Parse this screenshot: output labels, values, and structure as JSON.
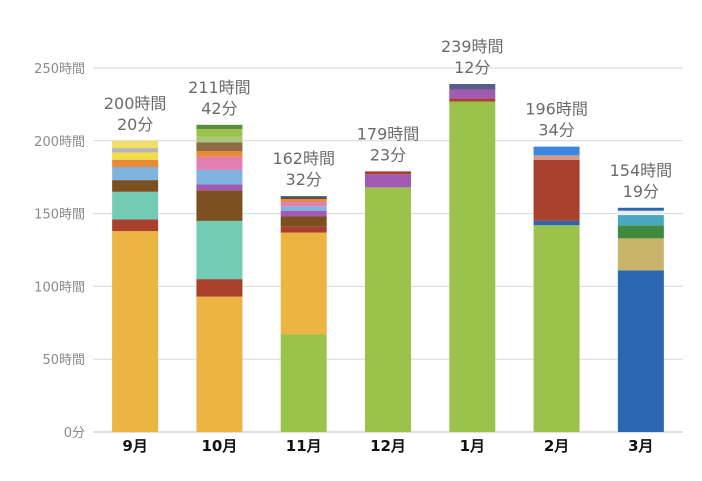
{
  "chart_data": {
    "type": "bar",
    "stacked": true,
    "title": "",
    "xlabel": "",
    "ylabel": "",
    "ylim": [
      0,
      250
    ],
    "yticks": [
      {
        "value": 0,
        "label": "0分"
      },
      {
        "value": 50,
        "label": "50時間"
      },
      {
        "value": 100,
        "label": "100時間"
      },
      {
        "value": 150,
        "label": "150時間"
      },
      {
        "value": 200,
        "label": "200時間"
      },
      {
        "value": 250,
        "label": "250時間"
      }
    ],
    "grid": true,
    "legend": "none",
    "categories": [
      "9月",
      "10月",
      "11月",
      "12月",
      "1月",
      "2月",
      "3月"
    ],
    "totals": [
      [
        "200時間",
        "20分"
      ],
      [
        "211時間",
        "42分"
      ],
      [
        "162時間",
        "32分"
      ],
      [
        "179時間",
        "23分"
      ],
      [
        "239時間",
        "12分"
      ],
      [
        "196時間",
        "34分"
      ],
      [
        "154時間",
        "19分"
      ]
    ],
    "stacks": [
      [
        {
          "value": 138,
          "color": "#ecb442"
        },
        {
          "value": 8,
          "color": "#a9402e"
        },
        {
          "value": 19,
          "color": "#72cbb4"
        },
        {
          "value": 8,
          "color": "#7b4f1f"
        },
        {
          "value": 9,
          "color": "#7fb3e0"
        },
        {
          "value": 5,
          "color": "#e88a3a"
        },
        {
          "value": 5,
          "color": "#f2dc4a"
        },
        {
          "value": 3,
          "color": "#b6b6b6"
        },
        {
          "value": 5,
          "color": "#f0e06a"
        }
      ],
      [
        {
          "value": 93,
          "color": "#ecb442"
        },
        {
          "value": 12,
          "color": "#a9402e"
        },
        {
          "value": 40,
          "color": "#72cbb4"
        },
        {
          "value": 21,
          "color": "#7b4f1f"
        },
        {
          "value": 4,
          "color": "#a25bb2"
        },
        {
          "value": 10,
          "color": "#7fb3e0"
        },
        {
          "value": 9,
          "color": "#e27fb0"
        },
        {
          "value": 4,
          "color": "#e88a3a"
        },
        {
          "value": 6,
          "color": "#8c6b45"
        },
        {
          "value": 4,
          "color": "#a9c77a"
        },
        {
          "value": 5,
          "color": "#9bc24a"
        },
        {
          "value": 3,
          "color": "#5c8f3e"
        }
      ],
      [
        {
          "value": 67,
          "color": "#9bc24a"
        },
        {
          "value": 70,
          "color": "#ecb442"
        },
        {
          "value": 4,
          "color": "#a9402e"
        },
        {
          "value": 7,
          "color": "#7b4f1f"
        },
        {
          "value": 4,
          "color": "#a25bb2"
        },
        {
          "value": 3,
          "color": "#7fb3e0"
        },
        {
          "value": 3,
          "color": "#e27fb0"
        },
        {
          "value": 2,
          "color": "#e88a3a"
        },
        {
          "value": 2,
          "color": "#555555"
        }
      ],
      [
        {
          "value": 168,
          "color": "#9bc24a"
        },
        {
          "value": 9,
          "color": "#a25bb2"
        },
        {
          "value": 2,
          "color": "#a9402e"
        }
      ],
      [
        {
          "value": 227,
          "color": "#9bc24a"
        },
        {
          "value": 2,
          "color": "#a9402e"
        },
        {
          "value": 6,
          "color": "#a25bb2"
        },
        {
          "value": 4,
          "color": "#5c5a8a"
        }
      ],
      [
        {
          "value": 142,
          "color": "#9bc24a"
        },
        {
          "value": 3,
          "color": "#2b66b0"
        },
        {
          "value": 42,
          "color": "#a9402e"
        },
        {
          "value": 3,
          "color": "#d69a8a"
        },
        {
          "value": 6,
          "color": "#3b86e0"
        }
      ],
      [
        {
          "value": 111,
          "color": "#2b66b0"
        },
        {
          "value": 22,
          "color": "#c8b46a"
        },
        {
          "value": 9,
          "color": "#3f8a40"
        },
        {
          "value": 7,
          "color": "#4aa7c0"
        },
        {
          "value": 3,
          "color": "#e9eef3"
        },
        {
          "value": 2,
          "color": "#2b66b0"
        }
      ]
    ]
  }
}
